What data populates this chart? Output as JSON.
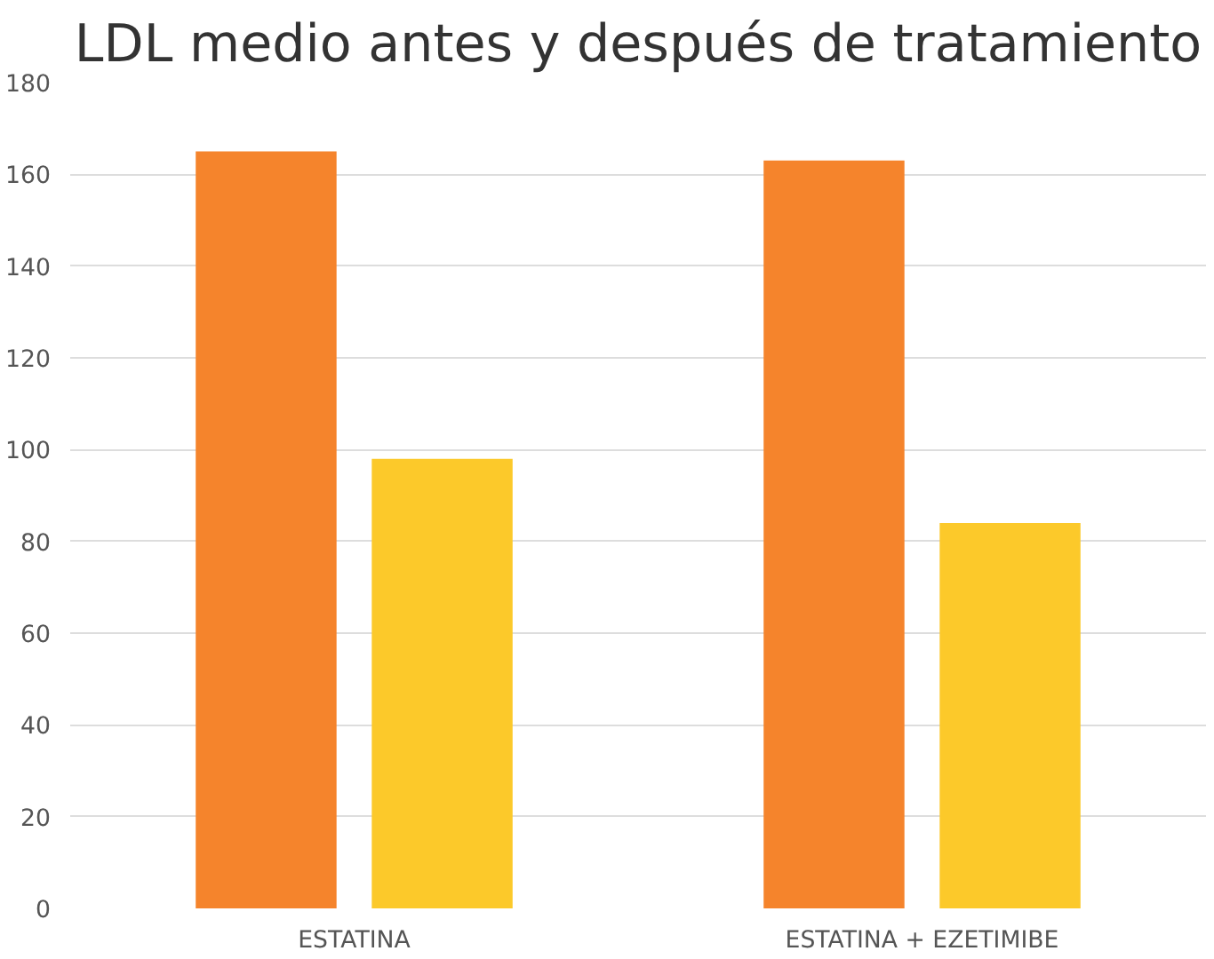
{
  "chart_data": {
    "type": "bar",
    "title": "LDL medio antes y después de tratamiento",
    "categories": [
      "ESTATINA",
      "ESTATINA + EZETIMIBE"
    ],
    "series": [
      {
        "color": "#f5842c",
        "values": [
          165,
          163
        ]
      },
      {
        "color": "#fcc92a",
        "values": [
          98,
          84
        ]
      }
    ],
    "ylim": [
      0,
      180
    ],
    "yticks": [
      0,
      20,
      40,
      60,
      80,
      100,
      120,
      140,
      160,
      180
    ],
    "grid": "y"
  }
}
